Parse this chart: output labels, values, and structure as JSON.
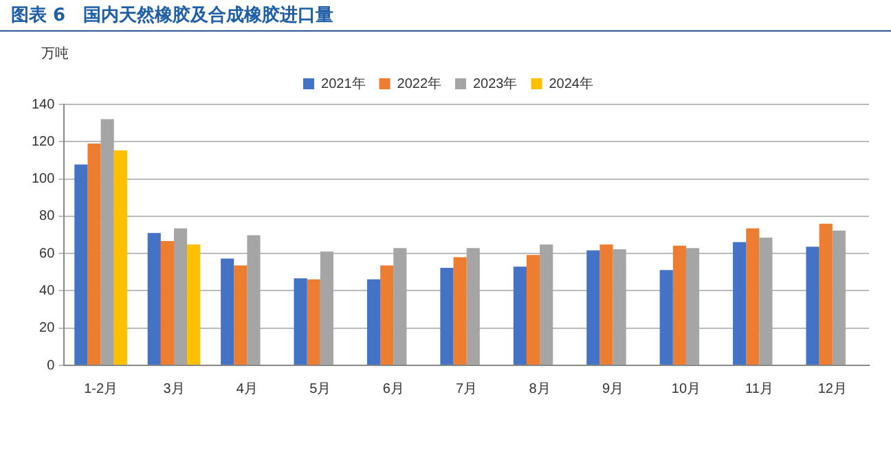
{
  "chart_data": {
    "type": "bar",
    "title": "图表 6　国内天然橡胶及合成橡胶进口量",
    "ylabel": "万吨",
    "categories": [
      "1-2月",
      "3月",
      "4月",
      "5月",
      "6月",
      "7月",
      "8月",
      "9月",
      "10月",
      "11月",
      "12月"
    ],
    "series": [
      {
        "name": "2021年",
        "color": "#4472c4",
        "values": [
          107.8,
          71,
          57.3,
          46.7,
          46.1,
          52.3,
          53,
          61.7,
          51.1,
          66.1,
          63.6
        ]
      },
      {
        "name": "2022年",
        "color": "#ed7d31",
        "values": [
          119,
          66.7,
          53.6,
          46.1,
          53.6,
          58,
          59.2,
          64.8,
          64.2,
          73.5,
          76
        ]
      },
      {
        "name": "2023年",
        "color": "#a5a5a5",
        "values": [
          132.1,
          73.5,
          69.8,
          61.1,
          62.9,
          62.9,
          64.8,
          62.3,
          62.9,
          68.5,
          72.3
        ]
      },
      {
        "name": "2024年",
        "color": "#ffc000",
        "values": [
          115.3,
          64.8,
          null,
          null,
          null,
          null,
          null,
          null,
          null,
          null,
          null
        ]
      }
    ],
    "ylim": [
      0,
      140
    ],
    "yticks": [
      0,
      20,
      40,
      60,
      80,
      100,
      120,
      140
    ],
    "grid": "y",
    "legend": "top"
  }
}
